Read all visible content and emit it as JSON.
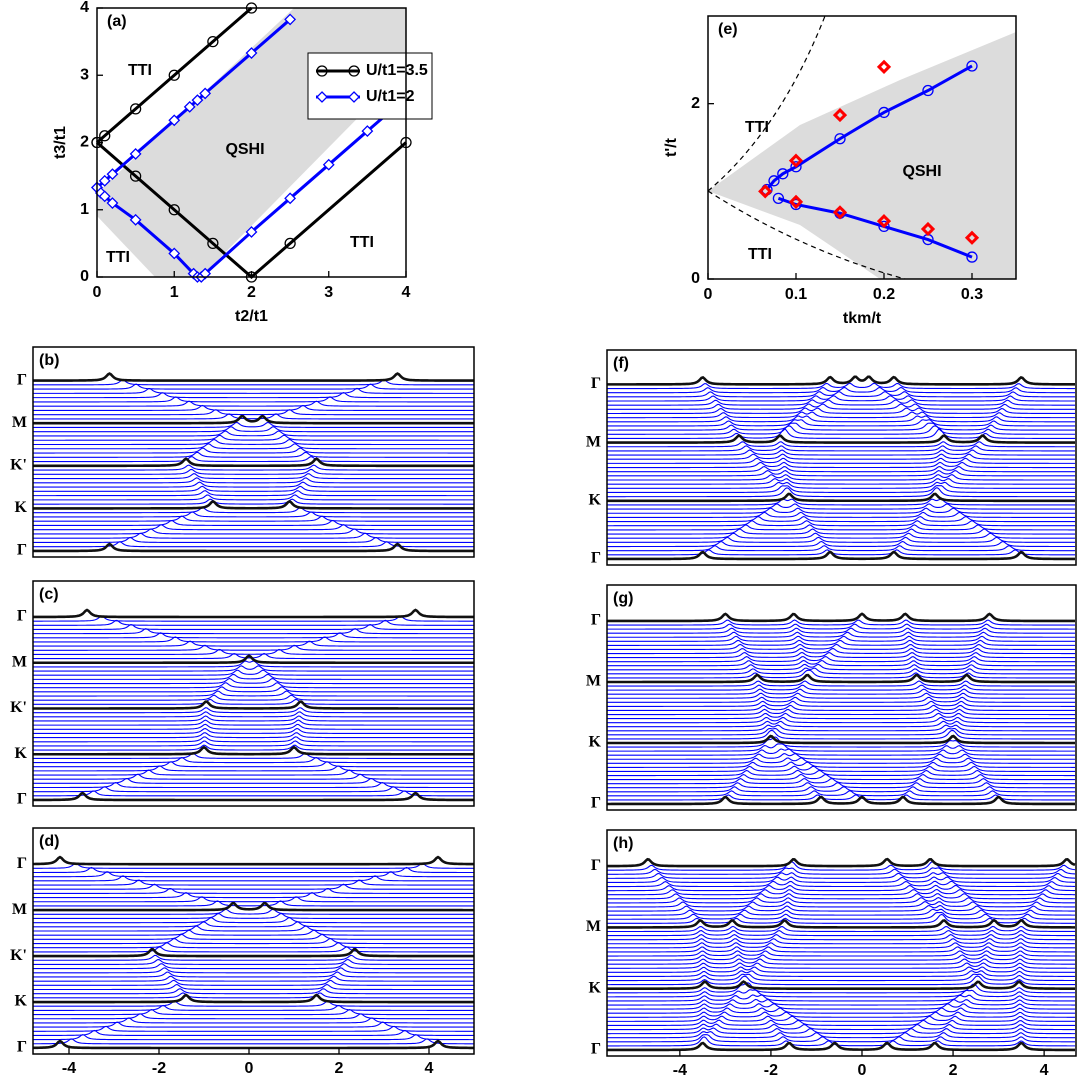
{
  "chart_data": [
    {
      "type": "line",
      "panel": "(a)",
      "xlabel": "t2/t1",
      "ylabel": "t3/t1",
      "xlim": [
        0,
        4
      ],
      "ylim": [
        0,
        4
      ],
      "xticks": [
        0,
        1,
        2,
        3,
        4
      ],
      "yticks": [
        0,
        1,
        2,
        3,
        4
      ],
      "legend": "upper right",
      "annotations": [
        "TTI",
        "QSHI",
        "TTI",
        "TTI"
      ],
      "series": [
        {
          "name": "U/t1=3.5",
          "color": "#000000",
          "marker": "circle",
          "line": true,
          "x": [
            0,
            0.1,
            0.5,
            1,
            1.5,
            2,
            null,
            0,
            0.5,
            1,
            1.5,
            2,
            2.5,
            4
          ],
          "values": [
            2,
            2.1,
            2.5,
            3,
            3.5,
            4,
            null,
            2,
            1.5,
            1,
            0.5,
            0,
            0.5,
            2
          ]
        },
        {
          "name": "U/t1=2",
          "color": "#0000ff",
          "marker": "diamond",
          "line": true,
          "x": [
            0,
            0.1,
            0.2,
            0.5,
            1,
            1.2,
            1.3,
            1.4,
            2,
            2.5,
            null,
            0,
            0.05,
            0.1,
            0.2,
            0.5,
            1,
            1.25,
            1.3,
            1.35,
            1.4,
            2,
            2.5,
            3,
            3.5,
            4
          ],
          "values": [
            1.33,
            1.43,
            1.53,
            1.83,
            2.33,
            2.53,
            2.63,
            2.73,
            3.33,
            3.83,
            null,
            1.33,
            1.25,
            1.2,
            1.1,
            0.85,
            0.35,
            0.05,
            0,
            0,
            0.05,
            0.67,
            1.17,
            1.67,
            2.17,
            2.67
          ]
        }
      ]
    },
    {
      "type": "line",
      "panel": "(e)",
      "xlabel": "tkm/t",
      "ylabel": "t'/t",
      "xlim": [
        0,
        0.35
      ],
      "ylim": [
        0,
        3
      ],
      "xticks": [
        0,
        0.1,
        0.2,
        0.3
      ],
      "yticks": [
        0,
        2
      ],
      "annotations": [
        "TTI",
        "QSHI",
        "TTI"
      ],
      "series": [
        {
          "color": "#0000ff",
          "marker": "circle",
          "line": true,
          "x": [
            0.067,
            0.075,
            0.085,
            0.1,
            0.15,
            0.2,
            0.25,
            0.3,
            null,
            0.08,
            0.1,
            0.15,
            0.2,
            0.25,
            0.3
          ],
          "values": [
            1.02,
            1.12,
            1.2,
            1.28,
            1.6,
            1.9,
            2.15,
            2.43,
            null,
            0.92,
            0.85,
            0.75,
            0.6,
            0.45,
            0.25
          ]
        },
        {
          "color": "#ff0000",
          "marker": "diamond",
          "line": false,
          "x": [
            0.065,
            0.1,
            0.15,
            0.2,
            0.1,
            0.15,
            0.2,
            0.25,
            0.3
          ],
          "values": [
            1.0,
            1.35,
            1.87,
            2.42,
            0.88,
            0.76,
            0.66,
            0.57,
            0.47
          ]
        }
      ]
    },
    {
      "type": "waterfall",
      "panel": "(b)",
      "xlim": [
        -4.8,
        5
      ],
      "categories": [
        "Γ",
        "M",
        "K'",
        "K",
        "Γ"
      ],
      "peaks": [
        [
          -3.1,
          3.3
        ],
        [
          -0.15,
          0.3
        ],
        [
          -1.4,
          1.5
        ],
        [
          -0.8,
          0.9
        ],
        [
          -3.1,
          3.3
        ]
      ]
    },
    {
      "type": "waterfall",
      "panel": "(c)",
      "xlim": [
        -4.8,
        5
      ],
      "categories": [
        "Γ",
        "M",
        "K'",
        "K",
        "Γ"
      ],
      "peaks": [
        [
          -3.6,
          3.7
        ],
        [
          0
        ],
        [
          -0.95,
          1.15
        ],
        [
          -1.0,
          1.0
        ],
        [
          -3.7,
          3.7
        ]
      ]
    },
    {
      "type": "waterfall",
      "panel": "(d)",
      "xlim": [
        -4.8,
        5
      ],
      "xticks": [
        -4,
        -2,
        0,
        2,
        4
      ],
      "categories": [
        "Γ",
        "M",
        "K'",
        "K",
        "Γ"
      ],
      "peaks": [
        [
          -4.2,
          4.2
        ],
        [
          -0.35,
          0.35
        ],
        [
          -2.15,
          2.35
        ],
        [
          -1.4,
          1.5
        ],
        [
          -4.2,
          4.2
        ]
      ]
    },
    {
      "type": "waterfall",
      "panel": "(f)",
      "xlim": [
        -5.6,
        4.7
      ],
      "categories": [
        "Γ",
        "M",
        "K",
        "Γ"
      ],
      "peaks": [
        [
          -3.5,
          -0.7,
          -0.15,
          0.15,
          0.7,
          3.5
        ],
        [
          -2.7,
          -1.8,
          1.8,
          2.65
        ],
        [
          -1.6,
          1.6
        ],
        [
          -3.5,
          -0.7,
          0.7,
          3.5
        ]
      ]
    },
    {
      "type": "waterfall",
      "panel": "(g)",
      "xlim": [
        -5.6,
        4.7
      ],
      "categories": [
        "Γ",
        "M",
        "K",
        "Γ"
      ],
      "peaks": [
        [
          -3.0,
          -1.5,
          0,
          0.95,
          2.8
        ],
        [
          -2.3,
          -1.2,
          1.2,
          2.3
        ],
        [
          -2.0,
          2.0
        ],
        [
          -3.0,
          -0.9,
          0,
          0.9,
          3.0
        ]
      ]
    },
    {
      "type": "waterfall",
      "panel": "(h)",
      "xlim": [
        -5.6,
        4.7
      ],
      "xticks": [
        -4,
        -2,
        0,
        2,
        4
      ],
      "categories": [
        "Γ",
        "M",
        "K",
        "Γ"
      ],
      "peaks": [
        [
          -4.7,
          -1.5,
          0.55,
          1.5,
          4.5
        ],
        [
          -3.55,
          -2.85,
          -1.7,
          1.8,
          2.9,
          3.5
        ],
        [
          -3.45,
          -2.6,
          2.55,
          3.45
        ],
        [
          -3.5,
          -1.6,
          -0.6,
          0.55,
          1.6,
          3.5
        ]
      ]
    }
  ]
}
